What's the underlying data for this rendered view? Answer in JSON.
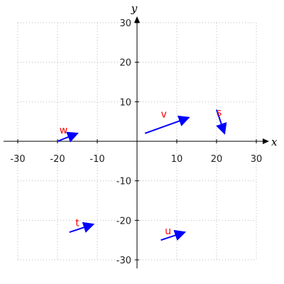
{
  "chart_data": {
    "type": "vector-field",
    "xlabel": "x",
    "ylabel": "y",
    "xlim": [
      -30,
      30
    ],
    "ylim": [
      -30,
      30
    ],
    "xticks": [
      -30,
      -20,
      -10,
      10,
      20,
      30
    ],
    "yticks": [
      -30,
      -20,
      -10,
      10,
      20,
      30
    ],
    "grid": true,
    "vector_color": "#0000ff",
    "label_color": "#ff0000",
    "vectors": [
      {
        "name": "v",
        "x0": 2,
        "y0": 2,
        "x1": 13,
        "y1": 6,
        "label_x": 6,
        "label_y": 6
      },
      {
        "name": "s",
        "x0": 20,
        "y0": 8,
        "x1": 22,
        "y1": 2,
        "label_x": 20,
        "label_y": 6.5
      },
      {
        "name": "w",
        "x0": -20,
        "y0": 0,
        "x1": -15,
        "y1": 2,
        "label_x": -19.5,
        "label_y": 2
      },
      {
        "name": "t",
        "x0": -17,
        "y0": -23,
        "x1": -11,
        "y1": -21,
        "label_x": -15.5,
        "label_y": -21.5
      },
      {
        "name": "u",
        "x0": 6,
        "y0": -25,
        "x1": 12,
        "y1": -23,
        "label_x": 7,
        "label_y": -23.5
      }
    ]
  }
}
